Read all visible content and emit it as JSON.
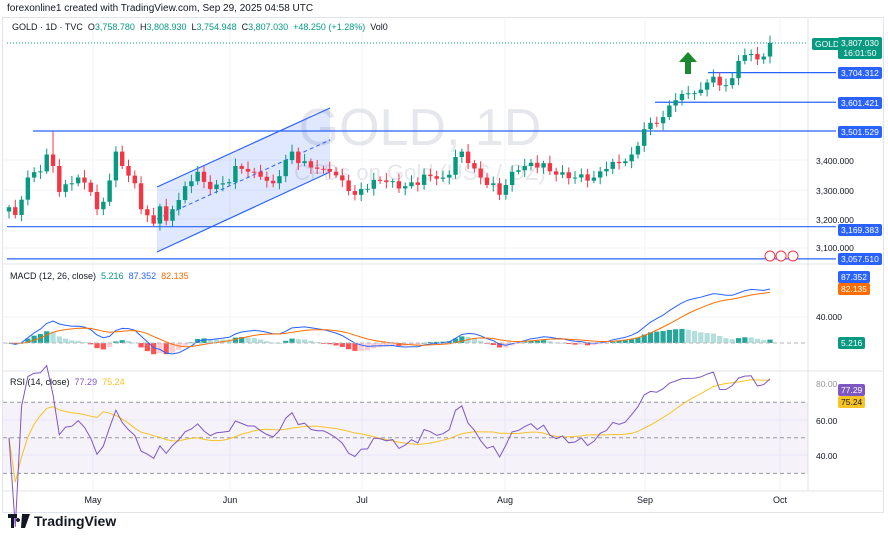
{
  "credit": "forexonline1 created with TradingView.com, Sep 29, 2025 04:58 UTC",
  "legend": {
    "symbol": "GOLD · 1D · TVC",
    "o_label": "O",
    "o": "3,758.780",
    "h_label": "H",
    "h": "3,808.930",
    "l_label": "L",
    "l": "3,754.948",
    "c_label": "C",
    "c": "3,807.030",
    "change": "+48.250 (+1.28%)",
    "vol": "Vol0"
  },
  "watermark": {
    "title": "GOLD, 1D",
    "subtitle": "CFDs on Gold (US$ / OZ)"
  },
  "price_axis": {
    "ticks": [
      "3,400.000",
      "3,300.000",
      "3,200.000",
      "3,100.000"
    ],
    "symbol_tag": "GOLD",
    "last_price": "3,807.030",
    "countdown": "16:01:50",
    "levels": [
      "3,704.312",
      "3,601.421",
      "3,501.529",
      "3,169.383",
      "3,057.510"
    ]
  },
  "macd": {
    "label": "MACD (12, 26, close)",
    "hist": "5.216",
    "macd": "87.352",
    "signal": "82.135",
    "tick": "40.000"
  },
  "rsi": {
    "label": "RSI (14, close)",
    "rsi": "77.29",
    "ma": "75.24",
    "ticks": [
      "80.00",
      "60.00",
      "40.00"
    ]
  },
  "time_axis": [
    "May",
    "Jun",
    "Jul",
    "Aug",
    "Sep",
    "Oct"
  ],
  "brand": "TradingView",
  "colors": {
    "up": "#089981",
    "down": "#f23645",
    "level": "#2962ff",
    "macd": "#2962ff",
    "signal": "#ff6d00",
    "rsi": "#7e57c2",
    "rsi_ma": "#f7c325",
    "arrow": "#1b8a2f"
  },
  "chart_data": {
    "type": "candlestick",
    "symbol": "GOLD",
    "interval": "1D",
    "close_keyframes": [
      [
        "2025-04-11",
        3237
      ],
      [
        "2025-04-14",
        3210
      ],
      [
        "2025-04-16",
        3340
      ],
      [
        "2025-04-21",
        3420
      ],
      [
        "2025-04-22",
        3380
      ],
      [
        "2025-04-23",
        3290
      ],
      [
        "2025-04-25",
        3320
      ],
      [
        "2025-04-28",
        3340
      ],
      [
        "2025-04-30",
        3290
      ],
      [
        "2025-05-01",
        3230
      ],
      [
        "2025-05-05",
        3330
      ],
      [
        "2025-05-06",
        3430
      ],
      [
        "2025-05-07",
        3380
      ],
      [
        "2025-05-09",
        3320
      ],
      [
        "2025-05-12",
        3230
      ],
      [
        "2025-05-14",
        3180
      ],
      [
        "2025-05-15",
        3240
      ],
      [
        "2025-05-16",
        3190
      ],
      [
        "2025-05-19",
        3230
      ],
      [
        "2025-05-21",
        3310
      ],
      [
        "2025-05-23",
        3360
      ],
      [
        "2025-05-27",
        3300
      ],
      [
        "2025-05-29",
        3320
      ],
      [
        "2025-06-02",
        3380
      ],
      [
        "2025-06-05",
        3360
      ],
      [
        "2025-06-10",
        3320
      ],
      [
        "2025-06-13",
        3430
      ],
      [
        "2025-06-16",
        3390
      ],
      [
        "2025-06-20",
        3370
      ],
      [
        "2025-06-23",
        3360
      ],
      [
        "2025-06-25",
        3330
      ],
      [
        "2025-06-27",
        3280
      ],
      [
        "2025-06-30",
        3300
      ],
      [
        "2025-07-03",
        3330
      ],
      [
        "2025-07-09",
        3310
      ],
      [
        "2025-07-14",
        3350
      ],
      [
        "2025-07-17",
        3340
      ],
      [
        "2025-07-22",
        3430
      ],
      [
        "2025-07-23",
        3390
      ],
      [
        "2025-07-25",
        3340
      ],
      [
        "2025-07-29",
        3320
      ],
      [
        "2025-07-30",
        3280
      ],
      [
        "2025-08-01",
        3360
      ],
      [
        "2025-08-05",
        3380
      ],
      [
        "2025-08-08",
        3390
      ],
      [
        "2025-08-12",
        3350
      ],
      [
        "2025-08-15",
        3340
      ],
      [
        "2025-08-20",
        3340
      ],
      [
        "2025-08-22",
        3370
      ],
      [
        "2025-08-26",
        3390
      ],
      [
        "2025-08-28",
        3420
      ],
      [
        "2025-08-29",
        3450
      ],
      [
        "2025-09-02",
        3530
      ],
      [
        "2025-09-04",
        3550
      ],
      [
        "2025-09-05",
        3590
      ],
      [
        "2025-09-09",
        3630
      ],
      [
        "2025-09-12",
        3645
      ],
      [
        "2025-09-16",
        3690
      ],
      [
        "2025-09-17",
        3660
      ],
      [
        "2025-09-19",
        3685
      ],
      [
        "2025-09-22",
        3745
      ],
      [
        "2025-09-23",
        3765
      ],
      [
        "2025-09-25",
        3750
      ],
      [
        "2025-09-26",
        3760
      ],
      [
        "2025-09-29",
        3807
      ]
    ],
    "horizontal_levels": [
      3704.312,
      3601.421,
      3501.529,
      3169.383,
      3057.51
    ],
    "annotations": [
      "ascending channel May–Jun",
      "green up arrow mid-September"
    ],
    "ylim": [
      3040,
      3830
    ]
  }
}
